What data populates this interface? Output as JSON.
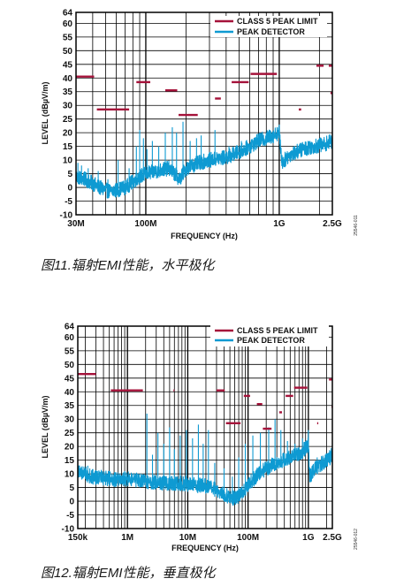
{
  "figures": [
    {
      "caption": "图11.辐射EMI性能，水平极化",
      "code": "25546-011"
    },
    {
      "caption": "图12.辐射EMI性能，垂直极化",
      "code": "25546-012"
    }
  ],
  "chart_data": [
    {
      "type": "line",
      "title": "",
      "xlabel": "FREQUENCY (Hz)",
      "ylabel": "LEVEL (dBµV/m)",
      "x_scale": "log",
      "x_range_hz": [
        30000000,
        2500000000
      ],
      "ylim": [
        -10,
        64
      ],
      "y_ticks": [
        -10,
        -5,
        0,
        5,
        10,
        15,
        20,
        25,
        30,
        35,
        40,
        45,
        50,
        55,
        60,
        64
      ],
      "x_ticks": [
        {
          "hz": 30000000,
          "label": "30M"
        },
        {
          "hz": 100000000,
          "label": "100M"
        },
        {
          "hz": 1000000000,
          "label": "1G"
        },
        {
          "hz": 2500000000,
          "label": "2.5G"
        }
      ],
      "grid": true,
      "legend_position": "top-right",
      "series": [
        {
          "name": "CLASS 5 PEAK LIMIT",
          "color": "#a5123a",
          "segments": [
            {
              "x": [
                30000000,
                41000000
              ],
              "y": 40.5
            },
            {
              "x": [
                43000000,
                75000000
              ],
              "y": 28.5
            },
            {
              "x": [
                85000000,
                108000000
              ],
              "y": 38.5
            },
            {
              "x": [
                140000000,
                172000000
              ],
              "y": 35.5
            },
            {
              "x": [
                176000000,
                245000000
              ],
              "y": 26.5
            },
            {
              "x": [
                330000000,
                365000000
              ],
              "y": 32.5
            },
            {
              "x": [
                440000000,
                590000000
              ],
              "y": 38.5
            },
            {
              "x": [
                610000000,
                960000000
              ],
              "y": 41.5
            },
            {
              "x": [
                1400000000,
                1460000000
              ],
              "y": 28.5
            },
            {
              "x": [
                1900000000,
                2150000000
              ],
              "y": 44.5
            },
            {
              "x": [
                2350000000,
                2500000000
              ],
              "y": 44.5
            },
            {
              "x": [
                2420000000,
                2500000000
              ],
              "y": 34.5
            }
          ]
        },
        {
          "name": "PEAK DETECTOR",
          "color": "#0e9ad2",
          "points": [
            [
              30000000,
              4
            ],
            [
              35000000,
              3
            ],
            [
              40000000,
              1.5
            ],
            [
              45000000,
              0
            ],
            [
              50000000,
              -1
            ],
            [
              55000000,
              -1.5
            ],
            [
              60000000,
              -1
            ],
            [
              70000000,
              0
            ],
            [
              80000000,
              2
            ],
            [
              90000000,
              4
            ],
            [
              100000000,
              5
            ],
            [
              120000000,
              6
            ],
            [
              150000000,
              7
            ],
            [
              180000000,
              3
            ],
            [
              200000000,
              7
            ],
            [
              250000000,
              9
            ],
            [
              300000000,
              10
            ],
            [
              400000000,
              11
            ],
            [
              500000000,
              13
            ],
            [
              600000000,
              15
            ],
            [
              700000000,
              17
            ],
            [
              800000000,
              18
            ],
            [
              900000000,
              19
            ],
            [
              1000000000,
              20
            ],
            [
              1050000000,
              9
            ],
            [
              1200000000,
              12
            ],
            [
              1500000000,
              14
            ],
            [
              1800000000,
              15
            ],
            [
              2100000000,
              15.5
            ],
            [
              2500000000,
              17
            ]
          ],
          "peaks": [
            [
              31000000,
              9
            ],
            [
              33000000,
              8
            ],
            [
              37000000,
              7
            ],
            [
              44000000,
              6
            ],
            [
              52000000,
              3
            ],
            [
              62000000,
              10
            ],
            [
              75000000,
              7
            ],
            [
              85000000,
              15
            ],
            [
              90000000,
              21
            ],
            [
              96000000,
              18
            ],
            [
              102000000,
              14
            ],
            [
              112000000,
              17
            ],
            [
              125000000,
              15
            ],
            [
              140000000,
              20
            ],
            [
              158000000,
              22
            ],
            [
              170000000,
              20
            ],
            [
              190000000,
              24
            ],
            [
              215000000,
              17
            ],
            [
              240000000,
              18
            ],
            [
              260000000,
              19
            ],
            [
              330000000,
              21
            ],
            [
              420000000,
              15
            ],
            [
              520000000,
              17
            ],
            [
              650000000,
              18
            ],
            [
              800000000,
              20
            ],
            [
              1000000000,
              23
            ],
            [
              1300000000,
              15
            ],
            [
              1700000000,
              17
            ],
            [
              2200000000,
              16
            ],
            [
              2450000000,
              19
            ]
          ]
        }
      ]
    },
    {
      "type": "line",
      "title": "",
      "xlabel": "FREQUENCY (Hz)",
      "ylabel": "LEVEL (dBµV/m)",
      "x_scale": "log",
      "x_range_hz": [
        150000,
        2500000000
      ],
      "ylim": [
        -10,
        64
      ],
      "y_ticks": [
        -10,
        -5,
        0,
        5,
        10,
        15,
        20,
        25,
        30,
        35,
        40,
        45,
        50,
        55,
        60,
        64
      ],
      "x_ticks": [
        {
          "hz": 150000,
          "label": "150k"
        },
        {
          "hz": 1000000,
          "label": "1M"
        },
        {
          "hz": 10000000,
          "label": "10M"
        },
        {
          "hz": 100000000,
          "label": "100M"
        },
        {
          "hz": 1000000000,
          "label": "1G"
        },
        {
          "hz": 2500000000,
          "label": "2.5G"
        }
      ],
      "grid": true,
      "legend_position": "top-right",
      "series": [
        {
          "name": "CLASS 5 PEAK LIMIT",
          "color": "#a5123a",
          "segments": [
            {
              "x": [
                150000,
                300000
              ],
              "y": 46.5
            },
            {
              "x": [
                530000,
                1800000
              ],
              "y": 40.5
            },
            {
              "x": [
                5800000,
                6000000
              ],
              "y": 40.5
            },
            {
              "x": [
                30000000,
                41000000
              ],
              "y": 40.5
            },
            {
              "x": [
                43000000,
                75000000
              ],
              "y": 28.5
            },
            {
              "x": [
                85000000,
                108000000
              ],
              "y": 38.5
            },
            {
              "x": [
                140000000,
                172000000
              ],
              "y": 35.5
            },
            {
              "x": [
                176000000,
                245000000
              ],
              "y": 26.5
            },
            {
              "x": [
                330000000,
                365000000
              ],
              "y": 32.5
            },
            {
              "x": [
                420000000,
                560000000
              ],
              "y": 38.5
            },
            {
              "x": [
                580000000,
                960000000
              ],
              "y": 41.5
            },
            {
              "x": [
                1400000000,
                1460000000
              ],
              "y": 28.5
            },
            {
              "x": [
                2200000000,
                2500000000
              ],
              "y": 44.5
            },
            {
              "x": [
                2420000000,
                2500000000
              ],
              "y": 34.5
            }
          ]
        },
        {
          "name": "PEAK DETECTOR",
          "color": "#0e9ad2",
          "points": [
            [
              150000,
              11
            ],
            [
              250000,
              9
            ],
            [
              400000,
              8.5
            ],
            [
              700000,
              8
            ],
            [
              1000000,
              8
            ],
            [
              1500000,
              7.5
            ],
            [
              2000000,
              7
            ],
            [
              3000000,
              7
            ],
            [
              5000000,
              6.5
            ],
            [
              8000000,
              6.5
            ],
            [
              12000000,
              6
            ],
            [
              20000000,
              5.5
            ],
            [
              30000000,
              4
            ],
            [
              45000000,
              2
            ],
            [
              60000000,
              1
            ],
            [
              80000000,
              3
            ],
            [
              100000000,
              6
            ],
            [
              150000000,
              10
            ],
            [
              200000000,
              12
            ],
            [
              300000000,
              14
            ],
            [
              400000000,
              15
            ],
            [
              600000000,
              17
            ],
            [
              800000000,
              18
            ],
            [
              1000000000,
              21
            ],
            [
              1050000000,
              9
            ],
            [
              1300000000,
              12
            ],
            [
              1700000000,
              14
            ],
            [
              2100000000,
              15
            ],
            [
              2500000000,
              17
            ]
          ],
          "peaks": [
            [
              160000,
              13
            ],
            [
              220000,
              13
            ],
            [
              300000,
              11
            ],
            [
              500000,
              11
            ],
            [
              900000,
              11
            ],
            [
              1500000,
              10
            ],
            [
              2100000,
              32
            ],
            [
              2600000,
              17
            ],
            [
              3200000,
              25
            ],
            [
              4000000,
              21
            ],
            [
              5000000,
              27
            ],
            [
              6000000,
              19
            ],
            [
              7500000,
              24
            ],
            [
              9500000,
              26
            ],
            [
              12000000,
              23
            ],
            [
              15000000,
              28
            ],
            [
              18000000,
              21
            ],
            [
              22000000,
              26
            ],
            [
              28000000,
              14
            ],
            [
              40000000,
              12
            ],
            [
              55000000,
              9
            ],
            [
              70000000,
              16
            ],
            [
              90000000,
              21
            ],
            [
              120000000,
              24
            ],
            [
              160000000,
              25
            ],
            [
              220000000,
              27
            ],
            [
              280000000,
              30
            ],
            [
              350000000,
              26
            ],
            [
              450000000,
              22
            ],
            [
              600000000,
              21
            ],
            [
              800000000,
              23
            ],
            [
              1000000000,
              26
            ],
            [
              1400000000,
              16
            ],
            [
              1900000000,
              17
            ],
            [
              2400000000,
              19
            ]
          ]
        }
      ]
    }
  ]
}
